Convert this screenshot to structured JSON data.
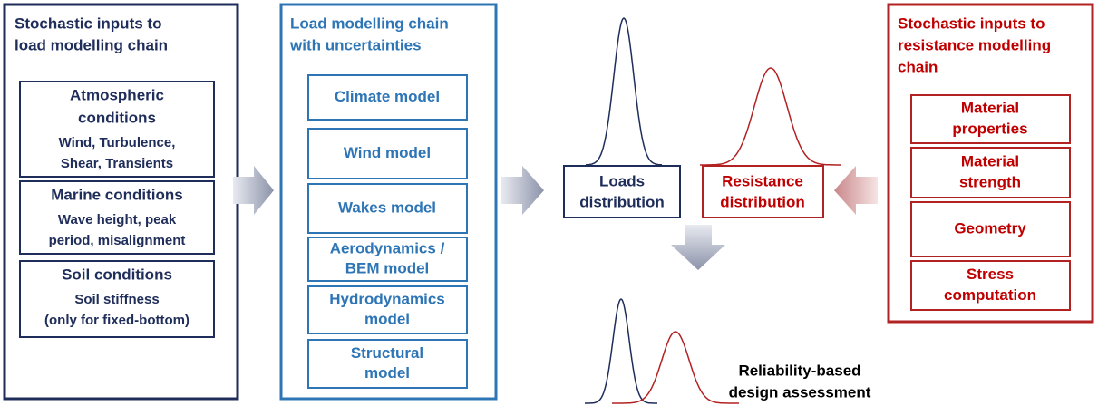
{
  "load_inputs": {
    "title": [
      "Stochastic inputs to",
      "load modelling chain"
    ],
    "boxes": [
      {
        "heading": [
          "Atmospheric",
          "conditions"
        ],
        "detail": [
          "Wind, Turbulence,",
          "Shear, Transients"
        ]
      },
      {
        "heading": [
          "Marine conditions"
        ],
        "detail": [
          "Wave height, peak",
          "period, misalignment"
        ]
      },
      {
        "heading": [
          "Soil conditions"
        ],
        "detail": [
          "Soil stiffness",
          "(only for fixed-bottom)"
        ]
      }
    ]
  },
  "load_chain": {
    "title": [
      "Load modelling chain",
      "with uncertainties"
    ],
    "boxes": [
      [
        "Climate model"
      ],
      [
        "Wind model"
      ],
      [
        "Wakes model"
      ],
      [
        "Aerodynamics /",
        "BEM model"
      ],
      [
        "Hydrodynamics",
        "model"
      ],
      [
        "Structural",
        "model"
      ]
    ]
  },
  "loads_distribution": [
    "Loads",
    "distribution"
  ],
  "resistance_distribution": [
    "Resistance",
    "distribution"
  ],
  "reliability_assessment": [
    "Reliability-based",
    "design assessment"
  ],
  "resistance_inputs": {
    "title": [
      "Stochastic inputs to",
      "resistance modelling",
      "chain"
    ],
    "boxes": [
      [
        "Material",
        "properties"
      ],
      [
        "Material",
        "strength"
      ],
      [
        "Geometry"
      ],
      [
        "Stress",
        "computation"
      ]
    ]
  }
}
